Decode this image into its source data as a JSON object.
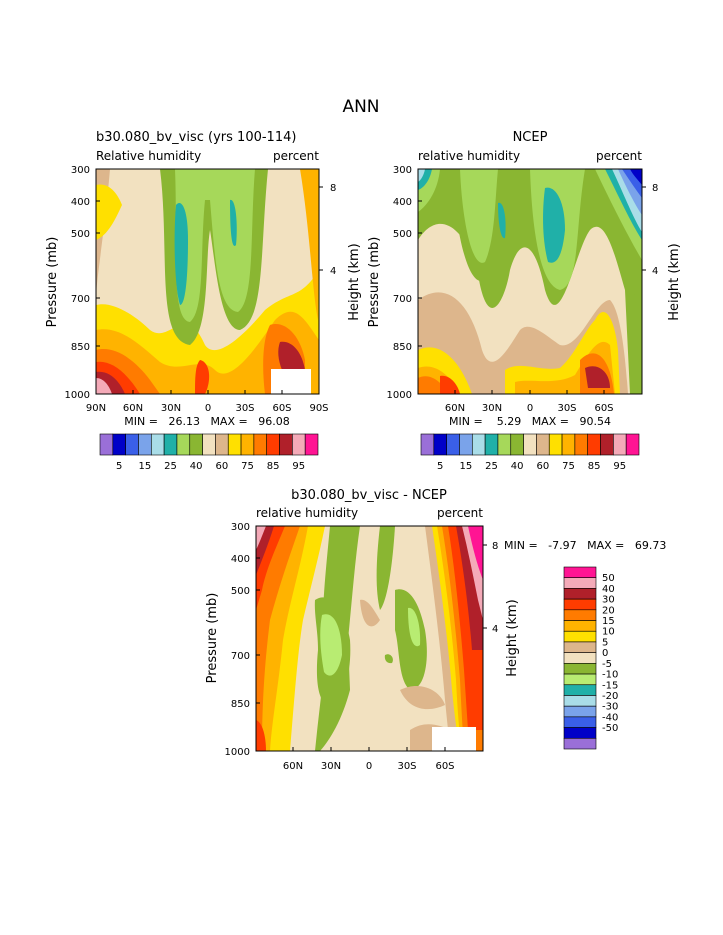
{
  "page": {
    "title": "ANN"
  },
  "colors": {
    "abs_bar": [
      "#9a6fd8",
      "#0000c8",
      "#3a5fe8",
      "#7aa3ea",
      "#a9dde8",
      "#20b0a8",
      "#a6d85a",
      "#8ab632",
      "#f2e1c0",
      "#ddb68c",
      "#ffe000",
      "#ffb300",
      "#ff7b00",
      "#ff3c00",
      "#b0202a",
      "#f4aab8",
      "#ff1493"
    ],
    "diff_bar": [
      "#ff1493",
      "#f4aab8",
      "#b0202a",
      "#ff3c00",
      "#ff7b00",
      "#ffb300",
      "#ffe000",
      "#ddb68c",
      "#f2e1c0",
      "#8ab632",
      "#b8ec72",
      "#20b0a8",
      "#a9dde8",
      "#7aa3ea",
      "#3a5fe8",
      "#0000c8",
      "#9a6fd8"
    ]
  },
  "chart_data": [
    {
      "type": "heatmap",
      "title": "b30.080_bv_visc (yrs 100-114)",
      "left_label": "Relative humidity",
      "right_label": "percent",
      "ylabel": "Pressure (mb)",
      "y2label": "Height (km)",
      "yticks": [
        "300",
        "400",
        "500",
        "700",
        "850",
        "1000"
      ],
      "y2ticks": [
        "8",
        "4"
      ],
      "xticks": [
        "90N",
        "60N",
        "30N",
        "0",
        "30S",
        "60S",
        "90S"
      ],
      "minmax": "MIN =   26.13   MAX =   96.08",
      "colorbar_labels": [
        "5",
        "15",
        "25",
        "40",
        "60",
        "75",
        "85",
        "95"
      ]
    },
    {
      "type": "heatmap",
      "title": "NCEP",
      "left_label": "relative humidity",
      "right_label": "percent",
      "ylabel": "Pressure (mb)",
      "y2label": "Height (km)",
      "yticks": [
        "300",
        "400",
        "500",
        "700",
        "850",
        "1000"
      ],
      "y2ticks": [
        "8",
        "4"
      ],
      "xticks": [
        "60N",
        "30N",
        "0",
        "30S",
        "60S"
      ],
      "minmax": "MIN =    5.29   MAX =   90.54",
      "colorbar_labels": [
        "5",
        "15",
        "25",
        "40",
        "60",
        "75",
        "85",
        "95"
      ]
    },
    {
      "type": "heatmap",
      "title": "b30.080_bv_visc - NCEP",
      "left_label": "relative humidity",
      "right_label": "percent",
      "ylabel": "Pressure (mb)",
      "y2label": "Height (km)",
      "yticks": [
        "300",
        "400",
        "500",
        "700",
        "850",
        "1000"
      ],
      "y2ticks": [
        "8",
        "4"
      ],
      "xticks": [
        "60N",
        "30N",
        "0",
        "30S",
        "60S"
      ],
      "minmax": "MIN =   -7.97   MAX =   69.73",
      "colorbar_labels": [
        "50",
        "40",
        "30",
        "20",
        "15",
        "10",
        "5",
        "0",
        "-5",
        "-10",
        "-15",
        "-20",
        "-30",
        "-40",
        "-50"
      ]
    }
  ]
}
